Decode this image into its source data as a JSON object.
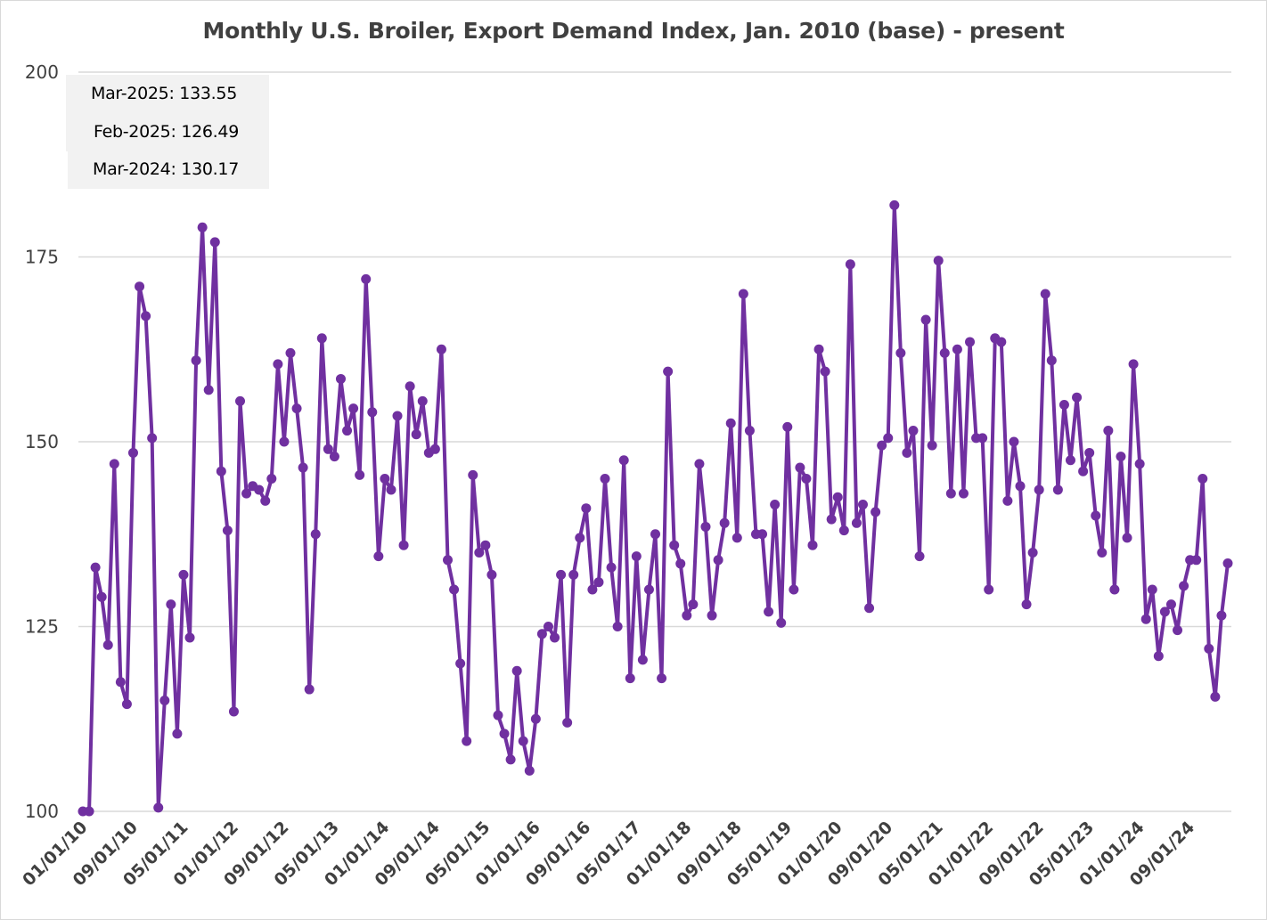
{
  "chart_data": {
    "type": "line",
    "title": "Monthly U.S. Broiler, Export Demand Index, Jan. 2010 (base) - present",
    "xlabel": "",
    "ylabel": "",
    "ylim": [
      100,
      200
    ],
    "yticks": [
      "100",
      "125",
      "150",
      "175",
      "200"
    ],
    "x_tick_labels": [
      "01/01/10",
      "09/01/10",
      "05/01/11",
      "01/01/12",
      "09/01/12",
      "05/01/13",
      "01/01/14",
      "09/01/14",
      "05/01/15",
      "01/01/16",
      "09/01/16",
      "05/01/17",
      "01/01/18",
      "09/01/18",
      "05/01/19",
      "01/01/20",
      "09/01/20",
      "05/01/21",
      "01/01/22",
      "09/01/22",
      "05/01/23",
      "01/01/24",
      "09/01/24"
    ],
    "grid": true,
    "legend": "none",
    "series_color": "#7030a0",
    "x_start": "2010-01",
    "values": [
      100,
      100,
      133,
      129,
      122.5,
      147,
      117.5,
      114.5,
      148.5,
      171,
      167,
      150.5,
      100.5,
      115,
      128,
      110.5,
      132,
      123.5,
      161,
      179,
      157,
      177,
      146,
      138,
      113.5,
      155.5,
      143,
      144,
      143.5,
      142,
      145,
      160.5,
      150,
      162,
      154.5,
      146.5,
      116.5,
      137.5,
      164,
      149,
      148,
      158.5,
      151.5,
      154.5,
      145.5,
      172,
      154,
      134.5,
      145,
      143.5,
      153.5,
      136,
      157.5,
      151,
      155.5,
      148.5,
      149,
      162.5,
      134,
      130,
      120,
      109.5,
      145.5,
      135,
      136,
      132,
      113,
      110.5,
      107,
      119,
      109.5,
      105.5,
      112.5,
      124,
      125,
      123.5,
      132,
      112,
      132,
      137,
      141,
      130,
      131,
      145,
      133,
      125,
      147.5,
      118,
      134.5,
      120.5,
      130,
      137.5,
      118,
      159.5,
      136,
      133.5,
      126.5,
      128,
      147,
      138.5,
      126.5,
      134,
      139,
      152.5,
      137,
      170,
      151.5,
      137.5,
      137.5,
      127,
      141.5,
      125.5,
      152,
      130,
      146.5,
      145,
      136,
      162.5,
      159.5,
      139.5,
      142.5,
      138,
      174,
      139,
      141.5,
      127.5,
      140.5,
      149.5,
      150.5,
      182,
      162,
      148.5,
      151.5,
      134.5,
      166.5,
      149.5,
      174.5,
      162,
      143,
      162.5,
      143,
      163.5,
      150.5,
      150.5,
      130,
      164,
      163.5,
      142,
      150,
      144,
      128,
      135,
      143.5,
      170,
      161,
      143.5,
      155,
      147.5,
      156,
      146,
      148.5,
      140,
      135,
      151.5,
      130,
      148,
      137,
      160.5,
      147,
      126,
      130,
      121,
      127,
      128,
      124.5,
      130.5,
      134,
      134,
      145,
      122,
      115.5,
      126.49,
      133.55
    ]
  },
  "annotations": [
    {
      "label": "Mar-2025:",
      "value": "133.55"
    },
    {
      "label": "Feb-2025:",
      "value": "126.49"
    },
    {
      "label": "Mar-2024:",
      "value": "130.17"
    }
  ]
}
